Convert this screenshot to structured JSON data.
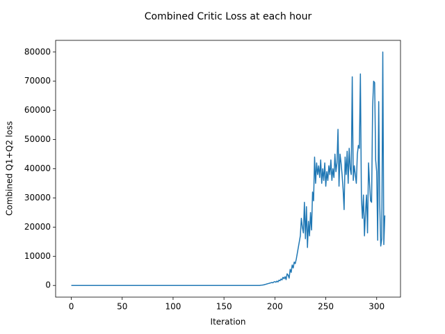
{
  "chart_data": {
    "type": "line",
    "title": "Combined Critic Loss at each hour",
    "xlabel": "Iteration",
    "ylabel": "Combined Q1+Q2 loss",
    "color": "#1f77b4",
    "x": [
      0,
      1,
      2,
      3,
      4,
      5,
      6,
      7,
      8,
      9,
      10,
      11,
      12,
      13,
      14,
      15,
      16,
      17,
      18,
      19,
      20,
      21,
      22,
      23,
      24,
      25,
      26,
      27,
      28,
      29,
      30,
      31,
      32,
      33,
      34,
      35,
      36,
      37,
      38,
      39,
      40,
      41,
      42,
      43,
      44,
      45,
      46,
      47,
      48,
      49,
      50,
      51,
      52,
      53,
      54,
      55,
      56,
      57,
      58,
      59,
      60,
      61,
      62,
      63,
      64,
      65,
      66,
      67,
      68,
      69,
      70,
      71,
      72,
      73,
      74,
      75,
      76,
      77,
      78,
      79,
      80,
      81,
      82,
      83,
      84,
      85,
      86,
      87,
      88,
      89,
      90,
      91,
      92,
      93,
      94,
      95,
      96,
      97,
      98,
      99,
      100,
      101,
      102,
      103,
      104,
      105,
      106,
      107,
      108,
      109,
      110,
      111,
      112,
      113,
      114,
      115,
      116,
      117,
      118,
      119,
      120,
      121,
      122,
      123,
      124,
      125,
      126,
      127,
      128,
      129,
      130,
      131,
      132,
      133,
      134,
      135,
      136,
      137,
      138,
      139,
      140,
      141,
      142,
      143,
      144,
      145,
      146,
      147,
      148,
      149,
      150,
      151,
      152,
      153,
      154,
      155,
      156,
      157,
      158,
      159,
      160,
      161,
      162,
      163,
      164,
      165,
      166,
      167,
      168,
      169,
      170,
      171,
      172,
      173,
      174,
      175,
      176,
      177,
      178,
      179,
      180,
      181,
      182,
      183,
      184,
      185,
      186,
      187,
      188,
      189,
      190,
      191,
      192,
      193,
      194,
      195,
      196,
      197,
      198,
      199,
      200,
      201,
      202,
      203,
      204,
      205,
      206,
      207,
      208,
      209,
      210,
      211,
      212,
      213,
      214,
      215,
      216,
      217,
      218,
      219,
      220,
      221,
      222,
      223,
      224,
      225,
      226,
      227,
      228,
      229,
      230,
      231,
      232,
      233,
      234,
      235,
      236,
      237,
      238,
      239,
      240,
      241,
      242,
      243,
      244,
      245,
      246,
      247,
      248,
      249,
      250,
      251,
      252,
      253,
      254,
      255,
      256,
      257,
      258,
      259,
      260,
      261,
      262,
      263,
      264,
      265,
      266,
      267,
      268,
      269,
      270,
      271,
      272,
      273,
      274,
      275,
      276,
      277,
      278,
      279,
      280,
      281,
      282,
      283,
      284,
      285,
      286,
      287,
      288,
      289,
      290,
      291,
      292,
      293,
      294,
      295,
      296,
      297,
      298,
      299,
      300,
      301,
      302,
      303,
      304,
      305,
      306,
      307,
      308
    ],
    "values": [
      0,
      0,
      0,
      0,
      0,
      0,
      0,
      0,
      0,
      0,
      0,
      0,
      0,
      0,
      0,
      0,
      0,
      0,
      0,
      0,
      0,
      0,
      0,
      0,
      0,
      0,
      0,
      0,
      0,
      0,
      0,
      0,
      0,
      0,
      0,
      0,
      0,
      0,
      0,
      0,
      0,
      0,
      0,
      0,
      0,
      0,
      0,
      0,
      0,
      0,
      0,
      0,
      0,
      0,
      0,
      0,
      0,
      0,
      0,
      0,
      0,
      0,
      0,
      0,
      0,
      0,
      0,
      0,
      0,
      0,
      0,
      0,
      0,
      0,
      0,
      0,
      0,
      0,
      0,
      0,
      0,
      0,
      0,
      0,
      0,
      0,
      0,
      0,
      0,
      0,
      0,
      0,
      0,
      0,
      0,
      0,
      0,
      0,
      0,
      0,
      0,
      0,
      0,
      0,
      0,
      0,
      0,
      0,
      0,
      0,
      0,
      0,
      0,
      0,
      0,
      0,
      0,
      0,
      0,
      0,
      0,
      0,
      0,
      0,
      0,
      0,
      0,
      0,
      0,
      0,
      0,
      0,
      0,
      0,
      0,
      0,
      0,
      0,
      0,
      0,
      0,
      0,
      0,
      0,
      0,
      0,
      0,
      0,
      0,
      0,
      0,
      0,
      0,
      0,
      0,
      0,
      0,
      0,
      0,
      0,
      0,
      0,
      0,
      0,
      0,
      0,
      0,
      0,
      0,
      0,
      0,
      0,
      0,
      0,
      0,
      0,
      0,
      0,
      0,
      0,
      0,
      0,
      0,
      0,
      0,
      0,
      50,
      100,
      150,
      200,
      300,
      400,
      500,
      600,
      700,
      800,
      900,
      1000,
      900,
      1200,
      1300,
      1100,
      1500,
      1200,
      1800,
      1600,
      2200,
      1900,
      2800,
      2300,
      3000,
      2000,
      4000,
      3500,
      2500,
      5500,
      4500,
      7000,
      6000,
      8000,
      7500,
      9000,
      11000,
      13000,
      15000,
      17000,
      23000,
      20000,
      18000,
      28500,
      16000,
      27000,
      13000,
      22000,
      17000,
      25000,
      19000,
      32000,
      29000,
      44000,
      35000,
      42000,
      38000,
      41000,
      37000,
      43000,
      35000,
      40000,
      36000,
      42000,
      34000,
      39000,
      36000,
      41000,
      38000,
      43000,
      36000,
      40000,
      37000,
      45000,
      39000,
      42000,
      53500,
      34000,
      45000,
      42000,
      38000,
      33000,
      26000,
      44000,
      38000,
      46000,
      35000,
      47000,
      40000,
      38000,
      71500,
      36000,
      41000,
      38000,
      35000,
      45000,
      48000,
      47000,
      72500,
      30000,
      23000,
      31000,
      17000,
      25000,
      31000,
      18000,
      42000,
      35000,
      29000,
      28500,
      61000,
      70000,
      69500,
      43000,
      39000,
      15500,
      63000,
      28000,
      13500,
      16000,
      80000,
      14000,
      24000
    ],
    "xlim": [
      -15.4,
      323.4
    ],
    "xticks": [
      0,
      50,
      100,
      150,
      200,
      250,
      300
    ],
    "ylim": [
      -4000,
      84000
    ],
    "yticks": [
      0,
      10000,
      20000,
      30000,
      40000,
      50000,
      60000,
      70000,
      80000
    ]
  }
}
